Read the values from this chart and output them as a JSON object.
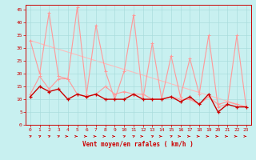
{
  "background_color": "#c8f0f0",
  "grid_color": "#aadddd",
  "xlim": [
    -0.5,
    23.5
  ],
  "ylim": [
    0,
    47
  ],
  "yticks": [
    0,
    5,
    10,
    15,
    20,
    25,
    30,
    35,
    40,
    45
  ],
  "xticks": [
    0,
    1,
    2,
    3,
    4,
    5,
    6,
    7,
    8,
    9,
    10,
    11,
    12,
    13,
    14,
    15,
    16,
    17,
    18,
    19,
    20,
    21,
    22,
    23
  ],
  "xlabel": "Vent moyen/en rafales ( km/h )",
  "line_rafales_x": [
    0,
    1,
    2,
    3,
    4,
    5,
    6,
    7,
    8,
    9,
    10,
    11,
    12,
    13,
    14,
    15,
    16,
    17,
    18,
    19,
    20,
    21,
    22,
    23
  ],
  "line_rafales_y": [
    33,
    20,
    44,
    19,
    18,
    46,
    12,
    39,
    21,
    10,
    21,
    43,
    10,
    32,
    10,
    27,
    11,
    26,
    12,
    35,
    7,
    8,
    35,
    7
  ],
  "line_moyen_x": [
    0,
    1,
    2,
    3,
    4,
    5,
    6,
    7,
    8,
    9,
    10,
    11,
    12,
    13,
    14,
    15,
    16,
    17,
    18,
    19,
    20,
    21,
    22,
    23
  ],
  "line_moyen_y": [
    11,
    15,
    13,
    14,
    10,
    12,
    11,
    12,
    10,
    10,
    10,
    12,
    10,
    10,
    10,
    11,
    9,
    11,
    8,
    12,
    5,
    8,
    7,
    7
  ],
  "line_mid_x": [
    0,
    1,
    2,
    3,
    4,
    5,
    6,
    7,
    8,
    9,
    10,
    11,
    12,
    13,
    14,
    15,
    16,
    17,
    18,
    19,
    20,
    21,
    22,
    23
  ],
  "line_mid_y": [
    12,
    19,
    14,
    18,
    18,
    12,
    11,
    12,
    15,
    12,
    13,
    12,
    12,
    10,
    10,
    11,
    10,
    10,
    8,
    11,
    8,
    9,
    8,
    7
  ],
  "line_trend_x": [
    0,
    23
  ],
  "line_trend_y": [
    33,
    7
  ],
  "color_light": "#ff9999",
  "color_dark": "#cc0000",
  "color_trend": "#ffbbbb",
  "arrow_angles_deg": [
    45,
    45,
    45,
    45,
    0,
    0,
    0,
    0,
    0,
    0,
    45,
    45,
    0,
    45,
    0,
    45,
    0,
    0,
    0,
    0,
    0,
    0,
    0,
    0
  ]
}
